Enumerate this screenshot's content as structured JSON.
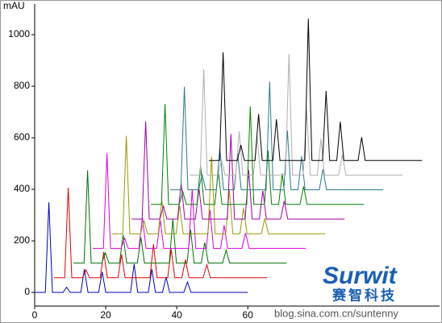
{
  "chart_data": {
    "type": "waterfall-line",
    "y_label": "mAU",
    "xlim": [
      0,
      114
    ],
    "xticks": [
      0,
      20,
      40,
      60
    ],
    "ylim": [
      -53,
      1119
    ],
    "yticks": [
      0,
      200,
      400,
      600,
      800,
      1000
    ],
    "x": [
      0,
      3,
      4,
      5,
      8,
      9,
      10,
      13,
      14,
      15,
      18,
      19,
      20,
      27,
      28,
      29,
      32,
      33,
      34,
      36,
      37,
      38,
      42,
      43,
      44,
      60
    ],
    "series": [
      {
        "color": "#0000c0",
        "values": [
          0,
          0,
          350,
          0,
          0,
          20,
          0,
          0,
          90,
          0,
          0,
          80,
          0,
          0,
          110,
          0,
          0,
          90,
          0,
          0,
          60,
          0,
          0,
          40,
          0,
          0
        ]
      },
      {
        "color": "#e00000",
        "values": [
          0,
          0,
          350,
          0,
          0,
          30,
          0,
          0,
          100,
          0,
          0,
          90,
          0,
          0,
          130,
          0,
          0,
          110,
          0,
          0,
          70,
          0,
          0,
          50,
          0,
          0
        ]
      },
      {
        "color": "#007000",
        "values": [
          0,
          0,
          360,
          0,
          0,
          40,
          0,
          0,
          110,
          0,
          0,
          100,
          0,
          0,
          170,
          0,
          0,
          130,
          0,
          0,
          80,
          0,
          0,
          50,
          0,
          0
        ]
      },
      {
        "color": "#e000e0",
        "values": [
          0,
          0,
          370,
          0,
          0,
          40,
          0,
          0,
          120,
          0,
          0,
          110,
          0,
          0,
          230,
          0,
          0,
          150,
          0,
          0,
          90,
          0,
          0,
          60,
          0,
          0
        ]
      },
      {
        "color": "#9a9a00",
        "values": [
          0,
          0,
          380,
          0,
          0,
          50,
          0,
          0,
          130,
          0,
          0,
          110,
          0,
          0,
          300,
          0,
          0,
          170,
          0,
          0,
          100,
          0,
          0,
          60,
          0,
          0
        ]
      },
      {
        "color": "#a000a0",
        "values": [
          0,
          0,
          380,
          0,
          0,
          50,
          0,
          0,
          140,
          0,
          0,
          120,
          0,
          0,
          330,
          0,
          0,
          190,
          0,
          0,
          110,
          0,
          0,
          70,
          0,
          0
        ]
      },
      {
        "color": "#008000",
        "values": [
          0,
          0,
          390,
          0,
          0,
          50,
          0,
          0,
          150,
          0,
          0,
          130,
          0,
          0,
          380,
          0,
          0,
          210,
          0,
          0,
          120,
          0,
          0,
          70,
          0,
          0
        ]
      },
      {
        "color": "#2a7a8a",
        "values": [
          0,
          0,
          400,
          0,
          0,
          60,
          0,
          0,
          160,
          0,
          0,
          140,
          0,
          0,
          420,
          0,
          0,
          230,
          0,
          0,
          130,
          0,
          0,
          80,
          0,
          0
        ]
      },
      {
        "color": "#b0b0b0",
        "values": [
          0,
          0,
          410,
          0,
          0,
          60,
          0,
          0,
          170,
          0,
          0,
          150,
          0,
          0,
          470,
          0,
          0,
          250,
          0,
          0,
          140,
          0,
          0,
          80,
          0,
          0
        ]
      },
      {
        "color": "#000000",
        "values": [
          0,
          0,
          420,
          0,
          0,
          60,
          0,
          0,
          180,
          0,
          0,
          160,
          0,
          0,
          550,
          0,
          0,
          270,
          0,
          0,
          150,
          0,
          0,
          90,
          0,
          0
        ]
      }
    ],
    "logo": "Surwit",
    "logo_sub": "赛智科技",
    "watermark": "blog.sina.com.cn/suntenny"
  }
}
